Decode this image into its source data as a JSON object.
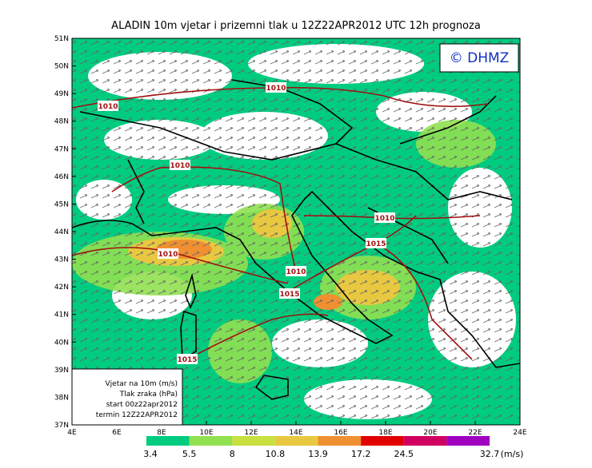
{
  "header": {
    "title": "ALADIN 10m vjetar i prizemni tlak u 12Z22APR2012 UTC 12h prognoza"
  },
  "logo": "© DHMZ",
  "lat_labels": [
    "37N",
    "38N",
    "39N",
    "40N",
    "41N",
    "42N",
    "43N",
    "44N",
    "45N",
    "46N",
    "47N",
    "48N",
    "49N",
    "50N",
    "51N"
  ],
  "lon_labels": [
    "4E",
    "6E",
    "8E",
    "10E",
    "12E",
    "14E",
    "16E",
    "18E",
    "20E",
    "22E",
    "24E"
  ],
  "legend": {
    "lines": [
      "Vjetar na 10m (m/s)",
      "Tlak zraka (hPa)",
      "start 00z22apr2012",
      "termin 12Z22APR2012"
    ]
  },
  "isobars": [
    {
      "label": "1010"
    },
    {
      "label": "1010"
    },
    {
      "label": "1010"
    },
    {
      "label": "1010"
    },
    {
      "label": "1010"
    },
    {
      "label": "1010"
    },
    {
      "label": "1015"
    },
    {
      "label": "1015"
    },
    {
      "label": "1015"
    }
  ],
  "colorbar": {
    "colors": [
      "#00cc80",
      "#90e050",
      "#c8e040",
      "#e8c840",
      "#f09030",
      "#e00000",
      "#d00060",
      "#a000c0"
    ],
    "values": [
      3.4,
      5.5,
      8,
      10.8,
      13.9,
      17.2,
      24.5,
      32.7
    ],
    "unit": "(m/s)"
  }
}
